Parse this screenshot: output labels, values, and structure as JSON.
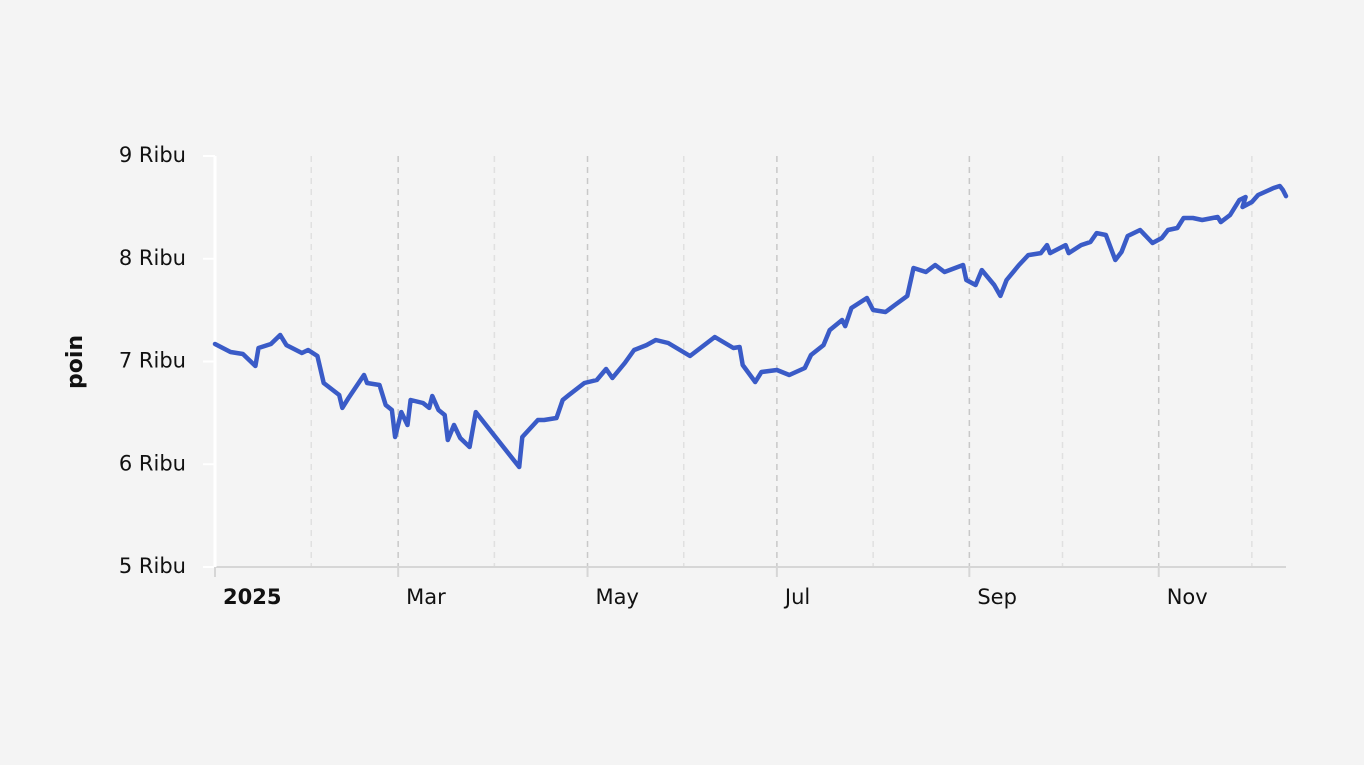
{
  "chart_data": {
    "type": "line",
    "y_label": "poin",
    "color": "#3a5bc7",
    "ylim": [
      5000,
      9000
    ],
    "yticks": [
      {
        "value": 5000,
        "label": "5 Ribu"
      },
      {
        "value": 6000,
        "label": "6 Ribu"
      },
      {
        "value": 7000,
        "label": "7 Ribu"
      },
      {
        "value": 8000,
        "label": "8 Ribu"
      },
      {
        "value": 9000,
        "label": "9 Ribu"
      }
    ],
    "xlim": [
      "2025-01-01",
      "2025-12-12"
    ],
    "xticks": [
      {
        "value": "2025-01-01",
        "label": "2025"
      },
      {
        "value": "2025-03-01",
        "label": "Mar"
      },
      {
        "value": "2025-05-01",
        "label": "May"
      },
      {
        "value": "2025-07-01",
        "label": "Jul"
      },
      {
        "value": "2025-09-01",
        "label": "Sep"
      },
      {
        "value": "2025-11-01",
        "label": "Nov"
      }
    ],
    "x_minor_ticks": [
      "2025-02-01",
      "2025-04-01",
      "2025-06-01",
      "2025-08-01",
      "2025-10-01",
      "2025-12-01"
    ],
    "grid": true,
    "x": [
      "2025-01-01",
      "2025-01-06",
      "2025-01-10",
      "2025-01-14",
      "2025-01-15",
      "2025-01-19",
      "2025-01-22",
      "2025-01-24",
      "2025-01-29",
      "2025-01-31",
      "2025-02-03",
      "2025-02-05",
      "2025-02-10",
      "2025-02-11",
      "2025-02-13",
      "2025-02-18",
      "2025-02-19",
      "2025-02-23",
      "2025-02-25",
      "2025-02-27",
      "2025-02-28",
      "2025-03-02",
      "2025-03-04",
      "2025-03-05",
      "2025-03-09",
      "2025-03-11",
      "2025-03-12",
      "2025-03-14",
      "2025-03-16",
      "2025-03-17",
      "2025-03-19",
      "2025-03-21",
      "2025-03-24",
      "2025-03-26",
      "2025-04-09",
      "2025-04-10",
      "2025-04-15",
      "2025-04-17",
      "2025-04-21",
      "2025-04-23",
      "2025-04-25",
      "2025-04-30",
      "2025-05-04",
      "2025-05-07",
      "2025-05-09",
      "2025-05-13",
      "2025-05-16",
      "2025-05-20",
      "2025-05-23",
      "2025-05-27",
      "2025-06-03",
      "2025-06-11",
      "2025-06-17",
      "2025-06-19",
      "2025-06-20",
      "2025-06-24",
      "2025-06-26",
      "2025-07-01",
      "2025-07-05",
      "2025-07-10",
      "2025-07-12",
      "2025-07-16",
      "2025-07-18",
      "2025-07-22",
      "2025-07-23",
      "2025-07-25",
      "2025-07-30",
      "2025-08-01",
      "2025-08-05",
      "2025-08-08",
      "2025-08-12",
      "2025-08-14",
      "2025-08-18",
      "2025-08-21",
      "2025-08-24",
      "2025-08-30",
      "2025-08-31",
      "2025-09-03",
      "2025-09-05",
      "2025-09-09",
      "2025-09-11",
      "2025-09-13",
      "2025-09-17",
      "2025-09-20",
      "2025-09-24",
      "2025-09-26",
      "2025-09-27",
      "2025-10-02",
      "2025-10-03",
      "2025-10-07",
      "2025-10-10",
      "2025-10-12",
      "2025-10-15",
      "2025-10-18",
      "2025-10-20",
      "2025-10-22",
      "2025-10-26",
      "2025-10-30",
      "2025-11-02",
      "2025-11-04",
      "2025-11-07",
      "2025-11-09",
      "2025-11-12",
      "2025-11-15",
      "2025-11-20",
      "2025-11-21",
      "2025-11-24",
      "2025-11-27",
      "2025-11-29",
      "2025-11-28",
      "2025-12-01",
      "2025-12-03",
      "2025-12-08",
      "2025-12-10",
      "2025-12-11",
      "2025-12-12"
    ],
    "values": [
      7170,
      7092,
      7073,
      6956,
      7131,
      7170,
      7258,
      7160,
      7083,
      7112,
      7054,
      6791,
      6674,
      6548,
      6645,
      6869,
      6791,
      6771,
      6577,
      6528,
      6265,
      6508,
      6382,
      6625,
      6596,
      6548,
      6664,
      6528,
      6479,
      6236,
      6382,
      6255,
      6168,
      6508,
      5973,
      6265,
      6431,
      6431,
      6450,
      6625,
      6674,
      6791,
      6820,
      6927,
      6839,
      6985,
      7112,
      7160,
      7209,
      7180,
      7054,
      7238,
      7131,
      7141,
      6966,
      6800,
      6898,
      6917,
      6869,
      6937,
      7063,
      7160,
      7306,
      7404,
      7345,
      7521,
      7618,
      7501,
      7482,
      7550,
      7638,
      7910,
      7871,
      7939,
      7871,
      7939,
      7793,
      7745,
      7890,
      7745,
      7638,
      7793,
      7939,
      8036,
      8055,
      8133,
      8055,
      8133,
      8055,
      8133,
      8163,
      8250,
      8231,
      7988,
      8066,
      8221,
      8280,
      8153,
      8202,
      8280,
      8299,
      8397,
      8397,
      8377,
      8406,
      8357,
      8426,
      8572,
      8601,
      8504,
      8552,
      8620,
      8689,
      8708,
      8669,
      8610
    ]
  }
}
